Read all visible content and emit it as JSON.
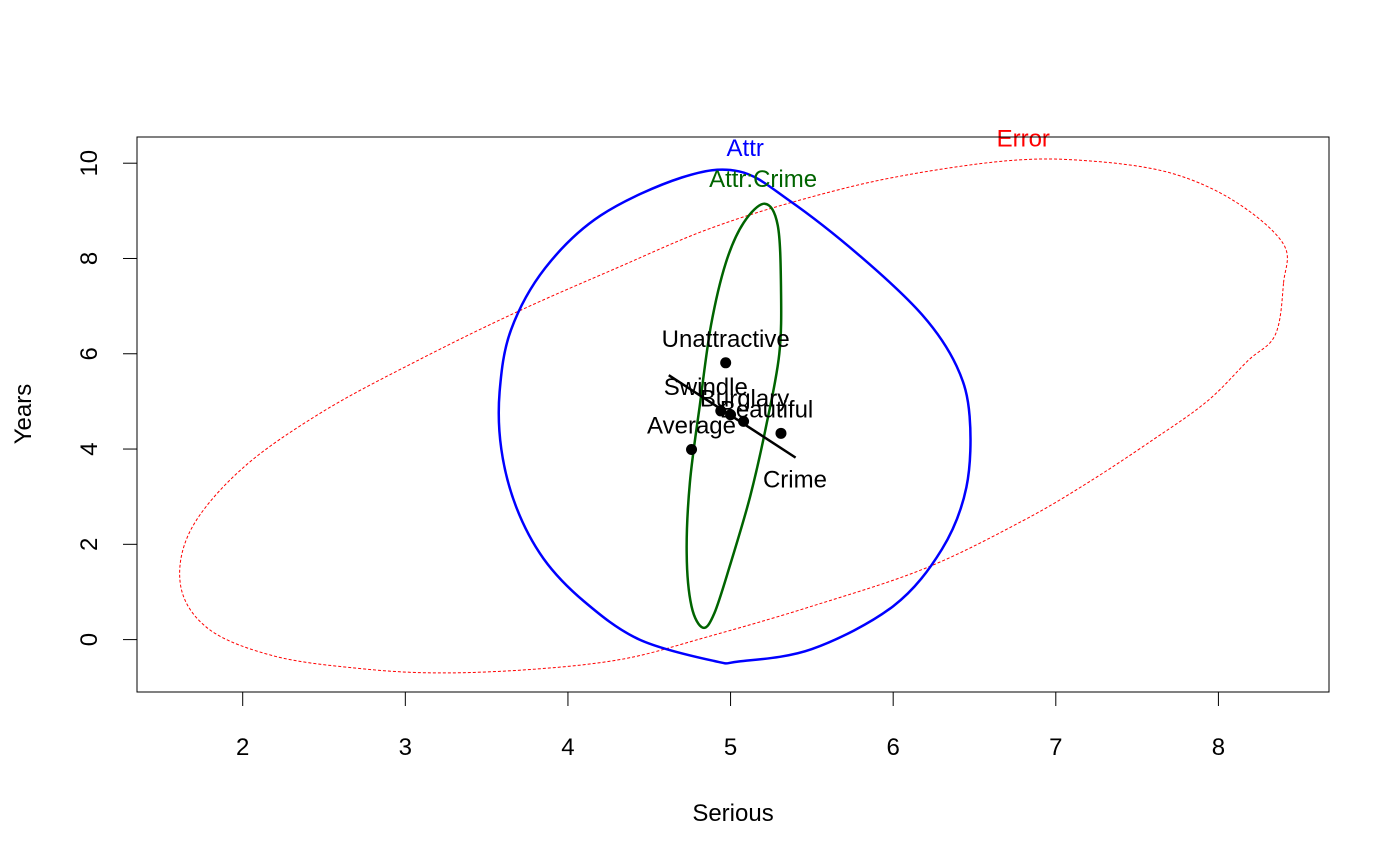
{
  "chart_data": {
    "type": "scatter",
    "title": "",
    "xlabel": "Serious",
    "ylabel": "Years",
    "xlim": [
      1.35,
      8.68
    ],
    "ylim": [
      -1.1,
      10.55
    ],
    "xticks": [
      2,
      3,
      4,
      5,
      6,
      7,
      8
    ],
    "yticks": [
      0,
      2,
      4,
      6,
      8,
      10
    ],
    "grid": false,
    "legend": "none",
    "colors": {
      "error": "#ff0000",
      "attr": "#0000ff",
      "interaction": "#006400",
      "points": "#000000"
    },
    "points": [
      {
        "label": "Unattractive",
        "x": 4.97,
        "y": 5.81
      },
      {
        "label": "Swindle",
        "x": 4.94,
        "y": 4.8
      },
      {
        "label": "Burglary",
        "x": 5.0,
        "y": 4.72
      },
      {
        "label": "Beautiful",
        "x": 5.08,
        "y": 4.58
      },
      {
        "label": "Average",
        "x": 4.76,
        "y": 3.99
      },
      {
        "label": "Crime",
        "x": 5.31,
        "y": 4.33
      }
    ],
    "effect_line": {
      "label": "Crime",
      "from": [
        4.62,
        5.55
      ],
      "to": [
        5.4,
        3.82
      ]
    },
    "ellipses": [
      {
        "name": "Error",
        "style": "dashed",
        "center": [
          5.02,
          4.69
        ],
        "boundary": [
          [
            8.4,
            7.48
          ],
          [
            8.35,
            6.4
          ],
          [
            8.18,
            5.85
          ],
          [
            7.93,
            5.0
          ],
          [
            7.6,
            4.2
          ],
          [
            7.2,
            3.3
          ],
          [
            6.8,
            2.5
          ],
          [
            6.2,
            1.5
          ],
          [
            5.5,
            0.7
          ],
          [
            4.85,
            0.05
          ],
          [
            4.35,
            -0.4
          ],
          [
            3.8,
            -0.62
          ],
          [
            3.2,
            -0.7
          ],
          [
            2.7,
            -0.6
          ],
          [
            2.2,
            -0.35
          ],
          [
            1.8,
            0.2
          ],
          [
            1.62,
            1.1
          ],
          [
            1.68,
            2.3
          ],
          [
            2.0,
            3.6
          ],
          [
            2.5,
            4.8
          ],
          [
            3.1,
            5.9
          ],
          [
            3.7,
            6.9
          ],
          [
            4.3,
            7.8
          ],
          [
            4.85,
            8.6
          ],
          [
            5.4,
            9.2
          ],
          [
            6.0,
            9.7
          ],
          [
            6.7,
            10.05
          ],
          [
            7.2,
            10.05
          ],
          [
            7.7,
            9.8
          ],
          [
            8.1,
            9.2
          ],
          [
            8.4,
            8.3
          ],
          [
            8.4,
            7.48
          ]
        ]
      },
      {
        "name": "Attr",
        "style": "solid",
        "center": [
          5.02,
          4.69
        ],
        "boundary": [
          [
            6.47,
            4.69
          ],
          [
            6.39,
            5.74
          ],
          [
            6.18,
            6.81
          ],
          [
            5.8,
            8.04
          ],
          [
            5.36,
            9.22
          ],
          [
            5.05,
            9.83
          ],
          [
            4.7,
            9.7
          ],
          [
            4.2,
            8.9
          ],
          [
            3.86,
            7.8
          ],
          [
            3.65,
            6.5
          ],
          [
            3.58,
            5.2
          ],
          [
            3.59,
            4.0
          ],
          [
            3.68,
            2.8
          ],
          [
            3.85,
            1.7
          ],
          [
            4.1,
            0.8
          ],
          [
            4.44,
            0.0
          ],
          [
            4.9,
            -0.45
          ],
          [
            5.05,
            -0.46
          ],
          [
            5.5,
            -0.2
          ],
          [
            6.0,
            0.7
          ],
          [
            6.3,
            1.9
          ],
          [
            6.45,
            3.2
          ],
          [
            6.47,
            4.69
          ]
        ]
      },
      {
        "name": "Attr:Crime",
        "style": "solid",
        "center": [
          5.02,
          4.69
        ],
        "boundary": [
          [
            5.21,
            9.15
          ],
          [
            5.29,
            8.7
          ],
          [
            5.31,
            7.4
          ],
          [
            5.3,
            6.0
          ],
          [
            5.22,
            4.5
          ],
          [
            5.12,
            3.0
          ],
          [
            5.0,
            1.6
          ],
          [
            4.9,
            0.55
          ],
          [
            4.83,
            0.25
          ],
          [
            4.76,
            0.7
          ],
          [
            4.73,
            1.8
          ],
          [
            4.75,
            3.3
          ],
          [
            4.81,
            4.9
          ],
          [
            4.88,
            6.6
          ],
          [
            4.97,
            7.9
          ],
          [
            5.08,
            8.75
          ],
          [
            5.21,
            9.15
          ]
        ]
      }
    ],
    "ellipse_labels": [
      {
        "name": "Error",
        "x": 6.8,
        "y": 10.35
      },
      {
        "name": "Attr",
        "x": 5.09,
        "y": 10.15
      },
      {
        "name": "Attr:Crime",
        "x": 5.2,
        "y": 9.5
      }
    ]
  }
}
